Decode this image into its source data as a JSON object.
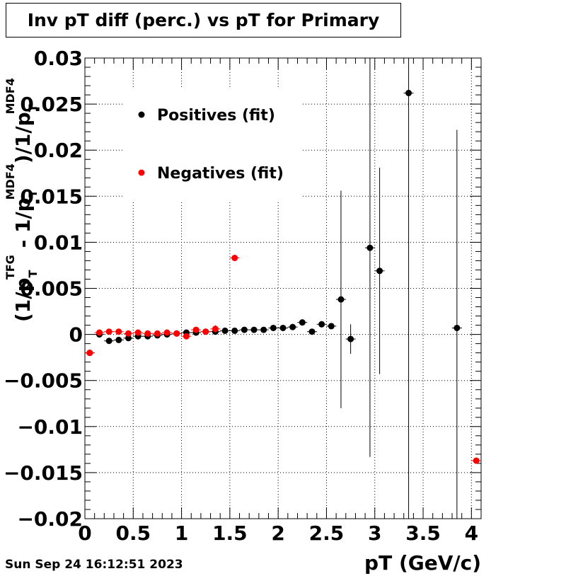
{
  "chart_data": {
    "type": "scatter",
    "title": "Inv pT diff (perc.) vs pT for Primary",
    "xlabel": "pT (GeV/c)",
    "ylabel_parts": [
      "(1/p",
      "T",
      "TFG",
      " - 1/p",
      "T",
      "MDF4",
      ")/1/p",
      "T",
      "MDF4"
    ],
    "xlim": [
      0,
      4.1
    ],
    "ylim": [
      -0.02,
      0.03
    ],
    "x_ticks": [
      {
        "value": 0,
        "label": "0"
      },
      {
        "value": 0.5,
        "label": "0.5"
      },
      {
        "value": 1,
        "label": "1"
      },
      {
        "value": 1.5,
        "label": "1.5"
      },
      {
        "value": 2,
        "label": "2"
      },
      {
        "value": 2.5,
        "label": "2.5"
      },
      {
        "value": 3,
        "label": "3"
      },
      {
        "value": 3.5,
        "label": "3.5"
      },
      {
        "value": 4,
        "label": "4"
      }
    ],
    "y_ticks": [
      {
        "value": 0.03,
        "label": "0.03"
      },
      {
        "value": 0.025,
        "label": "0.025"
      },
      {
        "value": 0.02,
        "label": "0.02"
      },
      {
        "value": 0.015,
        "label": "0.015"
      },
      {
        "value": 0.01,
        "label": "0.01"
      },
      {
        "value": 0.005,
        "label": "0.005"
      },
      {
        "value": 0,
        "label": "0"
      },
      {
        "value": -0.005,
        "label": "−0.005"
      },
      {
        "value": -0.01,
        "label": "−0.01"
      },
      {
        "value": -0.015,
        "label": "−0.015"
      },
      {
        "value": -0.02,
        "label": "−0.02"
      }
    ],
    "grid": true,
    "legend_position": "top-left",
    "series": [
      {
        "name": "Positives (fit)",
        "color": "#000000",
        "points": [
          {
            "x": 0.05,
            "y": -0.002,
            "err": 0.0002
          },
          {
            "x": 0.15,
            "y": 0.0,
            "err": 0.0002
          },
          {
            "x": 0.25,
            "y": -0.0007,
            "err": 0.0002
          },
          {
            "x": 0.35,
            "y": -0.0006,
            "err": 0.0002
          },
          {
            "x": 0.45,
            "y": -0.0004,
            "err": 0.0002
          },
          {
            "x": 0.55,
            "y": -0.0002,
            "err": 0.0002
          },
          {
            "x": 0.65,
            "y": -0.0002,
            "err": 0.0002
          },
          {
            "x": 0.75,
            "y": -0.0001,
            "err": 0.0002
          },
          {
            "x": 0.85,
            "y": 0.0,
            "err": 0.0002
          },
          {
            "x": 0.95,
            "y": 0.0001,
            "err": 0.0002
          },
          {
            "x": 1.05,
            "y": 0.0002,
            "err": 0.0002
          },
          {
            "x": 1.15,
            "y": 0.0002,
            "err": 0.0002
          },
          {
            "x": 1.25,
            "y": 0.0003,
            "err": 0.0002
          },
          {
            "x": 1.35,
            "y": 0.0003,
            "err": 0.0002
          },
          {
            "x": 1.45,
            "y": 0.0004,
            "err": 0.0002
          },
          {
            "x": 1.55,
            "y": 0.0004,
            "err": 0.0002
          },
          {
            "x": 1.65,
            "y": 0.0005,
            "err": 0.0002
          },
          {
            "x": 1.75,
            "y": 0.0005,
            "err": 0.0002
          },
          {
            "x": 1.85,
            "y": 0.0005,
            "err": 0.0002
          },
          {
            "x": 1.95,
            "y": 0.0007,
            "err": 0.0002
          },
          {
            "x": 2.05,
            "y": 0.0007,
            "err": 0.0002
          },
          {
            "x": 2.15,
            "y": 0.0008,
            "err": 0.0002
          },
          {
            "x": 2.25,
            "y": 0.0013,
            "err": 0.0002
          },
          {
            "x": 2.35,
            "y": 0.0003,
            "err": 0.0002
          },
          {
            "x": 2.45,
            "y": 0.0011,
            "err": 0.0002
          },
          {
            "x": 2.55,
            "y": 0.0009,
            "err": 0.0002
          },
          {
            "x": 2.65,
            "y": 0.0038,
            "err": 0.0118
          },
          {
            "x": 2.75,
            "y": -0.0005,
            "err": 0.0016
          },
          {
            "x": 2.95,
            "y": 0.0094,
            "err": 0.0227
          },
          {
            "x": 3.05,
            "y": 0.0069,
            "err": 0.0112
          },
          {
            "x": 3.35,
            "y": 0.0262,
            "err": 0.0462
          },
          {
            "x": 3.85,
            "y": 0.0007,
            "err": 0.0215
          }
        ]
      },
      {
        "name": "Negatives (fit)",
        "color": "#ff0000",
        "points": [
          {
            "x": 0.05,
            "y": -0.002,
            "err": 0.0002
          },
          {
            "x": 0.15,
            "y": 0.0002,
            "err": 0.0002
          },
          {
            "x": 0.25,
            "y": 0.0003,
            "err": 0.0002
          },
          {
            "x": 0.35,
            "y": 0.0003,
            "err": 0.0002
          },
          {
            "x": 0.45,
            "y": 0.0001,
            "err": 0.0002
          },
          {
            "x": 0.55,
            "y": 0.0002,
            "err": 0.0002
          },
          {
            "x": 0.65,
            "y": 0.0001,
            "err": 0.0002
          },
          {
            "x": 0.75,
            "y": 0.0001,
            "err": 0.0002
          },
          {
            "x": 0.85,
            "y": 0.0002,
            "err": 0.0002
          },
          {
            "x": 0.95,
            "y": 0.0001,
            "err": 0.0002
          },
          {
            "x": 1.05,
            "y": -0.0002,
            "err": 0.0002
          },
          {
            "x": 1.15,
            "y": 0.0005,
            "err": 0.0002
          },
          {
            "x": 1.25,
            "y": 0.0003,
            "err": 0.0002
          },
          {
            "x": 1.35,
            "y": 0.0006,
            "err": 0.0004
          },
          {
            "x": 1.55,
            "y": 0.0083,
            "err": 0.0002
          },
          {
            "x": 4.05,
            "y": -0.0137,
            "err": 0.0002
          }
        ]
      }
    ]
  },
  "footer": {
    "date": "Sun Sep 24 16:12:51 2023"
  }
}
